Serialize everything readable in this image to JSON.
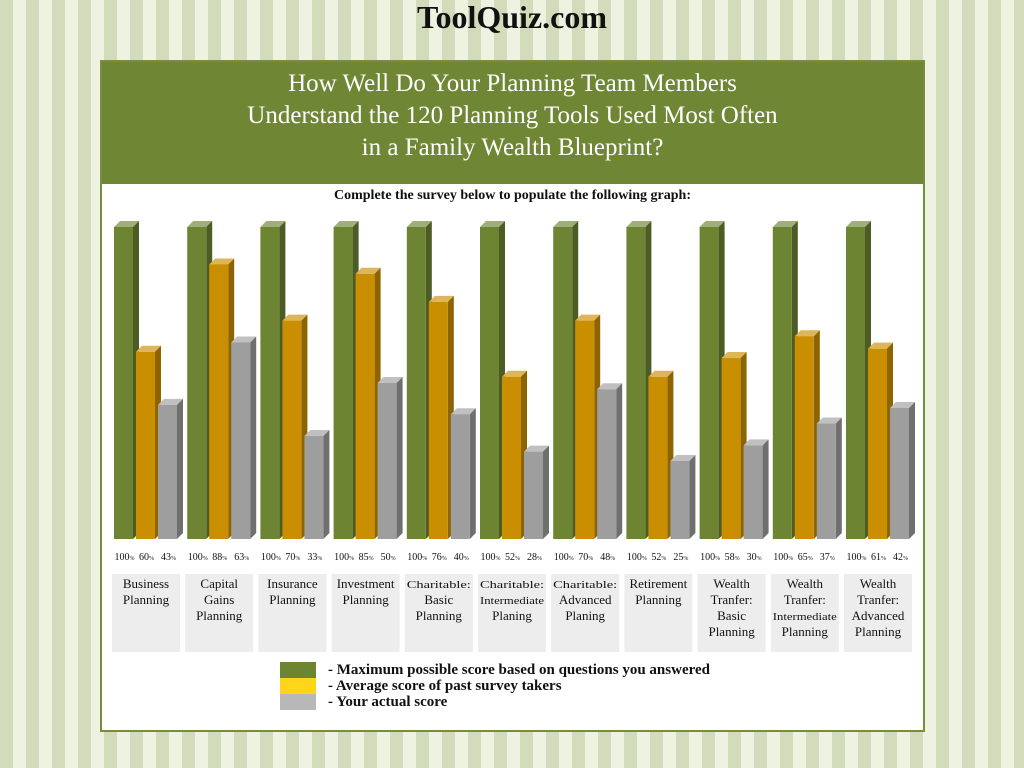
{
  "site_title": "ToolQuiz.com",
  "header": {
    "title_lines": [
      "How Well Do Your Planning Team Members",
      "Understand the 120 Planning Tools Used Most Often",
      "in a Family Wealth Blueprint?"
    ],
    "subtitle": "Complete the survey below to populate the following graph:"
  },
  "colors": {
    "max": "#6d8433",
    "avg": "#c98f00",
    "actual": "#9e9e9e",
    "header_bg": "#6f8635",
    "legend_max": "#6d8433",
    "legend_avg": "#ffd51a",
    "legend_actual": "#b8b8b8"
  },
  "chart_data": {
    "type": "bar",
    "categories": [
      [
        "Business",
        "Planning"
      ],
      [
        "Capital",
        "Gains",
        "Planning"
      ],
      [
        "Insurance",
        "Planning"
      ],
      [
        "Investment",
        "Planning"
      ],
      [
        "Charitable:",
        "Basic",
        "Planning"
      ],
      [
        "Charitable:",
        "Intermediate",
        "Planing"
      ],
      [
        "Charitable:",
        "Advanced",
        "Planing"
      ],
      [
        "Retirement",
        "Planning"
      ],
      [
        "Wealth",
        "Tranfer:",
        "Basic",
        "Planning"
      ],
      [
        "Wealth",
        "Tranfer:",
        "Intermediate",
        "Planning"
      ],
      [
        "Wealth",
        "Tranfer:",
        "Advanced",
        "Planning"
      ]
    ],
    "unit": "%",
    "series": [
      {
        "name": "- Maximum possible score based on questions you answered",
        "values": [
          100,
          100,
          100,
          100,
          100,
          100,
          100,
          100,
          100,
          100,
          100
        ]
      },
      {
        "name": "- Average score of past survey takers",
        "values": [
          60,
          88,
          70,
          85,
          76,
          52,
          70,
          52,
          58,
          65,
          61
        ]
      },
      {
        "name": "- Your actual score",
        "values": [
          43,
          63,
          33,
          50,
          40,
          28,
          48,
          25,
          30,
          37,
          42
        ]
      }
    ],
    "ylim": [
      0,
      100
    ],
    "grid": false,
    "legend_position": "bottom"
  }
}
